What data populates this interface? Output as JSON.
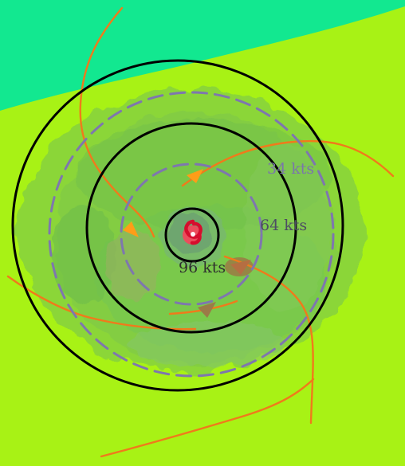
{
  "map": {
    "wind_radii": [
      {
        "label": "34 kts",
        "text_color": "#7a78a8"
      },
      {
        "label": "64 kts",
        "text_color": "#4d4d63"
      },
      {
        "label": "96 kts",
        "text_color": "#2f2f2f"
      }
    ],
    "hurricane_symbol": "red-hurricane-icon",
    "colors": {
      "land": "#a8f215",
      "water": "#12e890",
      "rain_light": "#8bd637",
      "rain_mid": "#6fbf4c",
      "rain_heavy": "#8ca168",
      "core": "#ff2a2a",
      "circles": "#000000",
      "dashed": "#7e77ae",
      "tracks": "#f07a1b"
    }
  }
}
